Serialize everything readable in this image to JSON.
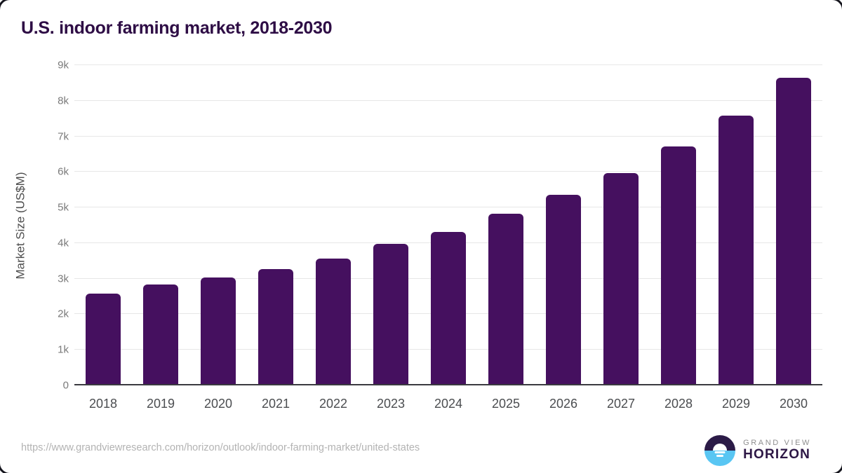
{
  "header": {
    "title": "U.S. indoor farming market, 2018-2030"
  },
  "chart_data": {
    "type": "bar",
    "title": "U.S. indoor farming market, 2018-2030",
    "categories": [
      "2018",
      "2019",
      "2020",
      "2021",
      "2022",
      "2023",
      "2024",
      "2025",
      "2026",
      "2027",
      "2028",
      "2029",
      "2030"
    ],
    "values": [
      2550,
      2800,
      3000,
      3250,
      3550,
      3950,
      4300,
      4800,
      5350,
      5950,
      6700,
      7580,
      8640
    ],
    "unit": "US$M",
    "xlabel": "",
    "ylabel": "Market Size (US$M)",
    "ylim": [
      0,
      9000
    ],
    "ytick_step": 1000,
    "ytick_labels": [
      "0",
      "1k",
      "2k",
      "3k",
      "4k",
      "5k",
      "6k",
      "7k",
      "8k",
      "9k"
    ],
    "grid": "horizontal gridlines on",
    "legend": "none",
    "bar_color": "#45105f"
  },
  "colors": {
    "title": "#2e0d45",
    "bar": "#45105f",
    "gridline": "#e7e7e7",
    "axis_line": "#3a3a40",
    "logo_dark": "#2b1b47",
    "logo_blue": "#59c6f3"
  },
  "footer": {
    "source_url": "https://www.grandviewresearch.com/horizon/outlook/indoor-farming-market/united-states",
    "logo": {
      "top_text": "GRAND VIEW",
      "bottom_text": "HORIZON"
    }
  }
}
